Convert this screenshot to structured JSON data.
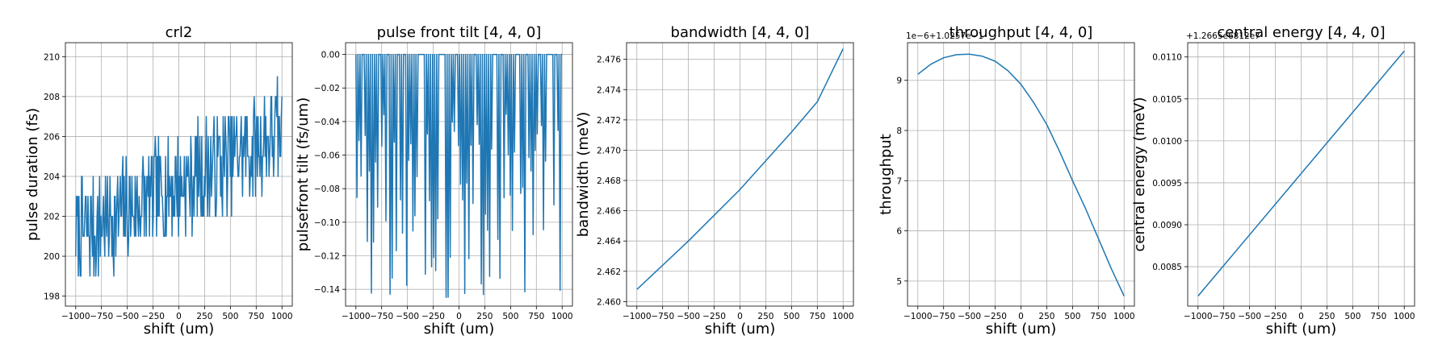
{
  "chart_data": [
    {
      "type": "line",
      "title": "crl2",
      "xlabel": "shift (um)",
      "ylabel": "pulse duration (fs)",
      "xlim": [
        -1100,
        1100
      ],
      "ylim": [
        197.5,
        210.7
      ],
      "xticks": [
        -1000,
        -750,
        -500,
        -250,
        0,
        250,
        500,
        750,
        1000
      ],
      "yticks": [
        198,
        200,
        202,
        204,
        206,
        208,
        210
      ],
      "ytick_labels": [
        "198",
        "200",
        "202",
        "204",
        "206",
        "208",
        "210"
      ],
      "grid": true,
      "generator": "noisy_duration",
      "series": [
        {
          "x_range": [
            -1000,
            1000
          ],
          "trend": [
            201.0,
            206.2
          ],
          "noise_span": [
            198,
            210
          ],
          "color": "#1f77b4"
        }
      ]
    },
    {
      "type": "line",
      "title": "pulse front tilt [4, 4, 0]",
      "xlabel": "shift (um)",
      "ylabel": "pulsefront tilt (fs/um)",
      "xlim": [
        -1100,
        1100
      ],
      "ylim": [
        -0.15,
        0.007
      ],
      "xticks": [
        -1000,
        -750,
        -500,
        -250,
        0,
        250,
        500,
        750,
        1000
      ],
      "yticks": [
        0.0,
        -0.02,
        -0.04,
        -0.06,
        -0.08,
        -0.1,
        -0.12,
        -0.14
      ],
      "ytick_labels": [
        "0.00",
        "−0.02",
        "−0.04",
        "−0.06",
        "−0.08",
        "−0.10",
        "−0.12",
        "−0.14"
      ],
      "grid": true,
      "generator": "spikes",
      "series": [
        {
          "x_range": [
            -1000,
            1000
          ],
          "baseline": 0.0,
          "spike_min": -0.145,
          "color": "#1f77b4"
        }
      ]
    },
    {
      "type": "line",
      "title": "bandwidth [4, 4, 0]",
      "xlabel": "shift (um)",
      "ylabel": "bandwidth (meV)",
      "xlim": [
        -1100,
        1100
      ],
      "ylim": [
        2.4597,
        2.4771
      ],
      "xticks": [
        -1000,
        -750,
        -500,
        -250,
        0,
        250,
        500,
        750,
        1000
      ],
      "yticks": [
        2.46,
        2.462,
        2.464,
        2.466,
        2.468,
        2.47,
        2.472,
        2.474,
        2.476
      ],
      "ytick_labels": [
        "2.460",
        "2.462",
        "2.464",
        "2.466",
        "2.468",
        "2.470",
        "2.472",
        "2.474",
        "2.476"
      ],
      "grid": true,
      "series": [
        {
          "x": [
            -1000,
            -750,
            -500,
            -250,
            0,
            250,
            500,
            750,
            1000
          ],
          "y": [
            2.4608,
            2.4624,
            2.464,
            2.4657,
            2.4674,
            2.4693,
            2.4712,
            2.4732,
            2.4767
          ],
          "color": "#1f77b4"
        }
      ]
    },
    {
      "type": "line",
      "title": "throughput [4, 4, 0]",
      "xlabel": "shift (um)",
      "ylabel": "throughput",
      "offset_text": "1e−6+1.0257e−1",
      "xlim": [
        -1100,
        1100
      ],
      "ylim": [
        4.5,
        9.75
      ],
      "xticks": [
        -1000,
        -750,
        -500,
        -250,
        0,
        250,
        500,
        750,
        1000
      ],
      "yticks": [
        5,
        6,
        7,
        8,
        9
      ],
      "ytick_labels": [
        "5",
        "6",
        "7",
        "8",
        "9"
      ],
      "grid": true,
      "series": [
        {
          "x": [
            -1000,
            -875,
            -750,
            -625,
            -500,
            -375,
            -250,
            -125,
            0,
            125,
            250,
            375,
            500,
            625,
            750,
            875,
            1000
          ],
          "y": [
            9.12,
            9.32,
            9.45,
            9.51,
            9.52,
            9.48,
            9.38,
            9.19,
            8.92,
            8.55,
            8.12,
            7.58,
            7.0,
            6.45,
            5.85,
            5.25,
            4.7
          ],
          "color": "#1f77b4"
        }
      ]
    },
    {
      "type": "line",
      "title": "central energy [4, 4, 0]",
      "xlabel": "shift (um)",
      "ylabel": "central energy (meV)",
      "offset_text": "+1.2665e6812e7",
      "xlim": [
        -1100,
        1100
      ],
      "ylim": [
        0.00803,
        0.01117
      ],
      "xticks": [
        -1000,
        -750,
        -500,
        -250,
        0,
        250,
        500,
        750,
        1000
      ],
      "yticks": [
        0.0085,
        0.009,
        0.0095,
        0.01,
        0.0105,
        0.011
      ],
      "ytick_labels": [
        "0.0085",
        "0.0090",
        "0.0095",
        "0.0100",
        "0.0105",
        "0.0110"
      ],
      "grid": true,
      "series": [
        {
          "x": [
            -1000,
            1000
          ],
          "y": [
            0.00815,
            0.01107
          ],
          "color": "#1f77b4"
        }
      ]
    }
  ],
  "xtick_labels": [
    "−1000",
    "−750",
    "−500",
    "−250",
    "0",
    "250",
    "500",
    "750",
    "1000"
  ]
}
